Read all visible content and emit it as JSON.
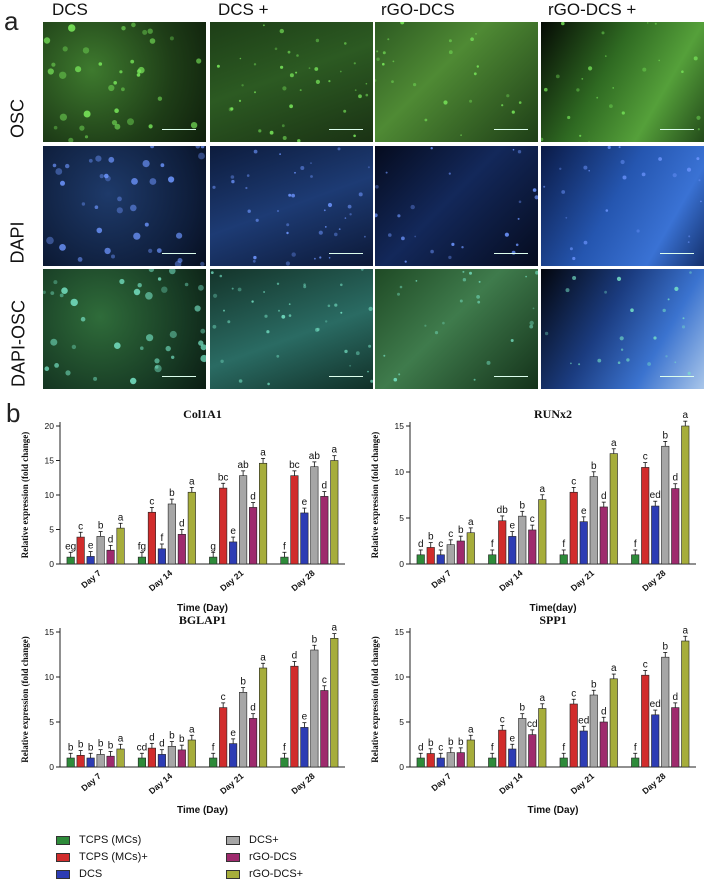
{
  "panel_a": {
    "letter": "a",
    "columns": [
      "DCS",
      "DCS +",
      "rGO-DCS",
      "rGO-DCS +"
    ],
    "rows": [
      "OSC",
      "DAPI",
      "DAPI-OSC"
    ]
  },
  "panel_b": {
    "letter": "b"
  },
  "colors": {
    "TCPS (MCs)": "#2e8b3a",
    "TCPS (MCs)+": "#d12c2c",
    "DCS": "#2d3cb4",
    "DCS+": "#a6a6a6",
    "rGO-DCS": "#9e2a6d",
    "rGO-DCS+": "#a6ad3b"
  },
  "legend": [
    "TCPS (MCs)",
    "DCS+",
    "TCPS (MCs)+",
    "rGO-DCS",
    "DCS",
    "rGO-DCS+"
  ],
  "chart_data": [
    {
      "type": "bar",
      "title": "Col1A1",
      "xlabel": "Time (Day)",
      "ylabel": "Relative expression (fold change)",
      "ylim": [
        0,
        20
      ],
      "yticks": [
        0,
        5,
        10,
        15,
        20
      ],
      "categories": [
        "Day 7",
        "Day 14",
        "Day 21",
        "Day 28"
      ],
      "series": [
        {
          "name": "TCPS (MCs)",
          "values": [
            1,
            1,
            1,
            1
          ],
          "labels": [
            "eg",
            "fg",
            "g",
            "f"
          ]
        },
        {
          "name": "TCPS (MCs)+",
          "values": [
            3.9,
            7.5,
            11.0,
            12.8
          ],
          "labels": [
            "c",
            "c",
            "bc",
            "bc"
          ]
        },
        {
          "name": "DCS",
          "values": [
            1.1,
            2.2,
            3.2,
            7.4
          ],
          "labels": [
            "e",
            "f",
            "e",
            "e"
          ]
        },
        {
          "name": "DCS+",
          "values": [
            4.0,
            8.7,
            12.8,
            14.1
          ],
          "labels": [
            "b",
            "b",
            "ab",
            "ab"
          ]
        },
        {
          "name": "rGO-DCS",
          "values": [
            2.0,
            4.3,
            8.2,
            9.8
          ],
          "labels": [
            "d",
            "d",
            "d",
            "d"
          ]
        },
        {
          "name": "rGO-DCS+",
          "values": [
            5.2,
            10.4,
            14.6,
            15.0
          ],
          "labels": [
            "a",
            "a",
            "a",
            "a"
          ]
        }
      ]
    },
    {
      "type": "bar",
      "title": "RUNx2",
      "xlabel": "Time(day)",
      "ylabel": "Relative expression (fold change)",
      "ylim": [
        0,
        15
      ],
      "yticks": [
        0,
        5,
        10,
        15
      ],
      "categories": [
        "Day 7",
        "Day 14",
        "Day 21",
        "Day 28"
      ],
      "series": [
        {
          "name": "TCPS (MCs)",
          "values": [
            1,
            1,
            1,
            1
          ],
          "labels": [
            "d",
            "f",
            "f",
            "f"
          ]
        },
        {
          "name": "TCPS (MCs)+",
          "values": [
            1.8,
            4.7,
            7.8,
            10.5
          ],
          "labels": [
            "b",
            "db",
            "c",
            "c"
          ]
        },
        {
          "name": "DCS",
          "values": [
            1.0,
            3.0,
            4.6,
            6.3
          ],
          "labels": [
            "c",
            "e",
            "e",
            "ed"
          ]
        },
        {
          "name": "DCS+",
          "values": [
            2.1,
            5.2,
            9.5,
            12.8
          ],
          "labels": [
            "c",
            "b",
            "b",
            "b"
          ]
        },
        {
          "name": "rGO-DCS",
          "values": [
            2.5,
            3.7,
            6.2,
            8.2
          ],
          "labels": [
            "b",
            "c",
            "d",
            "d"
          ]
        },
        {
          "name": "rGO-DCS+",
          "values": [
            3.4,
            7.0,
            12.0,
            15.0
          ],
          "labels": [
            "a",
            "a",
            "a",
            "a"
          ]
        }
      ]
    },
    {
      "type": "bar",
      "title": "BGLAP1",
      "xlabel": "Time (Day)",
      "ylabel": "Relative expression (fold change)",
      "ylim": [
        0,
        15
      ],
      "yticks": [
        0,
        5,
        10,
        15
      ],
      "categories": [
        "Day 7",
        "Day 14",
        "Day 21",
        "Day 28"
      ],
      "series": [
        {
          "name": "TCPS (MCs)",
          "values": [
            1,
            1,
            1,
            1
          ],
          "labels": [
            "b",
            "cd",
            "f",
            "f"
          ]
        },
        {
          "name": "TCPS (MCs)+",
          "values": [
            1.3,
            2.1,
            6.6,
            11.2
          ],
          "labels": [
            "b",
            "d",
            "c",
            "d"
          ]
        },
        {
          "name": "DCS",
          "values": [
            1.0,
            1.4,
            2.6,
            4.4
          ],
          "labels": [
            "b",
            "d",
            "e",
            "e"
          ]
        },
        {
          "name": "DCS+",
          "values": [
            1.4,
            2.3,
            8.3,
            13.0
          ],
          "labels": [
            "b",
            "b",
            "b",
            "b"
          ]
        },
        {
          "name": "rGO-DCS",
          "values": [
            1.2,
            1.9,
            5.4,
            8.5
          ],
          "labels": [
            "b",
            "b",
            "d",
            "c"
          ]
        },
        {
          "name": "rGO-DCS+",
          "values": [
            2.0,
            3.0,
            11.0,
            14.3
          ],
          "labels": [
            "a",
            "a",
            "a",
            "a"
          ]
        }
      ]
    },
    {
      "type": "bar",
      "title": "SPP1",
      "xlabel": "Time (Day)",
      "ylabel": "Relative expression (fold change)",
      "ylim": [
        0,
        15
      ],
      "yticks": [
        0,
        5,
        10,
        15
      ],
      "categories": [
        "Day 7",
        "Day 14",
        "Day 21",
        "Day 28"
      ],
      "series": [
        {
          "name": "TCPS (MCs)",
          "values": [
            1,
            1,
            1,
            1
          ],
          "labels": [
            "d",
            "f",
            "f",
            "f"
          ]
        },
        {
          "name": "TCPS (MCs)+",
          "values": [
            1.5,
            4.1,
            7.0,
            10.2
          ],
          "labels": [
            "b",
            "c",
            "c",
            "c"
          ]
        },
        {
          "name": "DCS",
          "values": [
            1.0,
            2.0,
            4.0,
            5.8
          ],
          "labels": [
            "c",
            "e",
            "ed",
            "ed"
          ]
        },
        {
          "name": "DCS+",
          "values": [
            1.6,
            5.4,
            8.0,
            12.2
          ],
          "labels": [
            "b",
            "b",
            "b",
            "b"
          ]
        },
        {
          "name": "rGO-DCS",
          "values": [
            1.6,
            3.6,
            5.0,
            6.6
          ],
          "labels": [
            "b",
            "cd",
            "d",
            "d"
          ]
        },
        {
          "name": "rGO-DCS+",
          "values": [
            3.0,
            6.5,
            9.8,
            14.0
          ],
          "labels": [
            "a",
            "a",
            "a",
            "a"
          ]
        }
      ]
    }
  ]
}
